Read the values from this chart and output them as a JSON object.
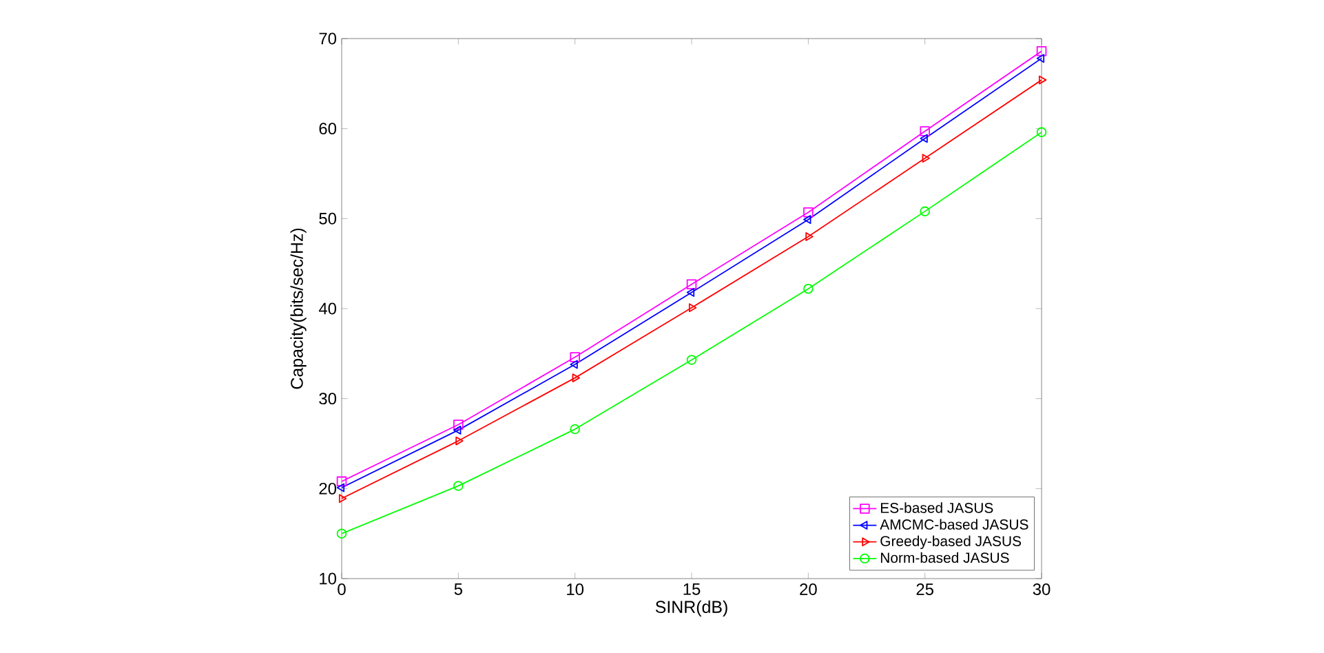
{
  "chart_data": {
    "type": "line",
    "xlabel": "SINR(dB)",
    "ylabel": "Capacity(bits/sec/Hz)",
    "x": [
      0,
      5,
      10,
      15,
      20,
      25,
      30
    ],
    "xlim": [
      0,
      30
    ],
    "xticks": [
      0,
      5,
      10,
      15,
      20,
      25,
      30
    ],
    "ylim": [
      10,
      70
    ],
    "yticks": [
      10,
      20,
      30,
      40,
      50,
      60,
      70
    ],
    "grid": false,
    "legend": "bottom right",
    "line_style": "solid",
    "series": [
      {
        "name": "ES-based JASUS",
        "color": "#ff00ff",
        "marker": "square",
        "values": [
          20.8,
          27.1,
          34.6,
          42.7,
          50.7,
          59.7,
          68.6
        ]
      },
      {
        "name": "AMCMC-based JASUS",
        "color": "#0000ff",
        "marker": "triangle-left",
        "values": [
          20.1,
          26.5,
          33.8,
          41.8,
          49.9,
          58.9,
          67.8
        ]
      },
      {
        "name": "Greedy-based JASUS",
        "color": "#ff0000",
        "marker": "triangle-right",
        "values": [
          18.9,
          25.3,
          32.3,
          40.1,
          48.0,
          56.7,
          65.4
        ]
      },
      {
        "name": "Norm-based JASUS",
        "color": "#00ff00",
        "marker": "circle",
        "values": [
          15.0,
          20.3,
          26.6,
          34.3,
          42.2,
          50.8,
          59.6
        ]
      }
    ]
  }
}
